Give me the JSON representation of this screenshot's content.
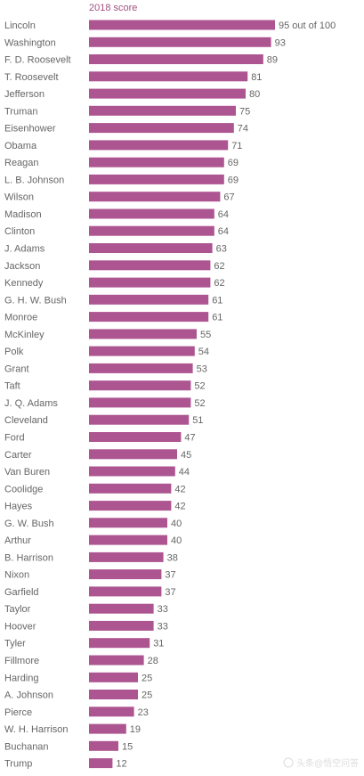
{
  "chart_data": {
    "type": "bar",
    "orientation": "horizontal",
    "header": "2018 score",
    "value_suffix_first": " out of 100",
    "xlim": [
      0,
      100
    ],
    "grid": false,
    "legend": "none",
    "bar_color": "#ad5591",
    "label_color": "#666666",
    "header_color": "#a0507e",
    "categories": [
      "Lincoln",
      "Washington",
      "F. D. Roosevelt",
      "T. Roosevelt",
      "Jefferson",
      "Truman",
      "Eisenhower",
      "Obama",
      "Reagan",
      "L. B. Johnson",
      "Wilson",
      "Madison",
      "Clinton",
      "J. Adams",
      "Jackson",
      "Kennedy",
      "G. H. W. Bush",
      "Monroe",
      "McKinley",
      "Polk",
      "Grant",
      "Taft",
      "J. Q. Adams",
      "Cleveland",
      "Ford",
      "Carter",
      "Van Buren",
      "Coolidge",
      "Hayes",
      "G. W. Bush",
      "Arthur",
      "B. Harrison",
      "Nixon",
      "Garfield",
      "Taylor",
      "Hoover",
      "Tyler",
      "Fillmore",
      "Harding",
      "A. Johnson",
      "Pierce",
      "W. H. Harrison",
      "Buchanan",
      "Trump"
    ],
    "values": [
      95,
      93,
      89,
      81,
      80,
      75,
      74,
      71,
      69,
      69,
      67,
      64,
      64,
      63,
      62,
      62,
      61,
      61,
      55,
      54,
      53,
      52,
      52,
      51,
      47,
      45,
      44,
      42,
      42,
      40,
      40,
      38,
      37,
      37,
      33,
      33,
      31,
      28,
      25,
      25,
      23,
      19,
      15,
      12
    ]
  },
  "watermark": {
    "text": "头条@悟空问答"
  }
}
